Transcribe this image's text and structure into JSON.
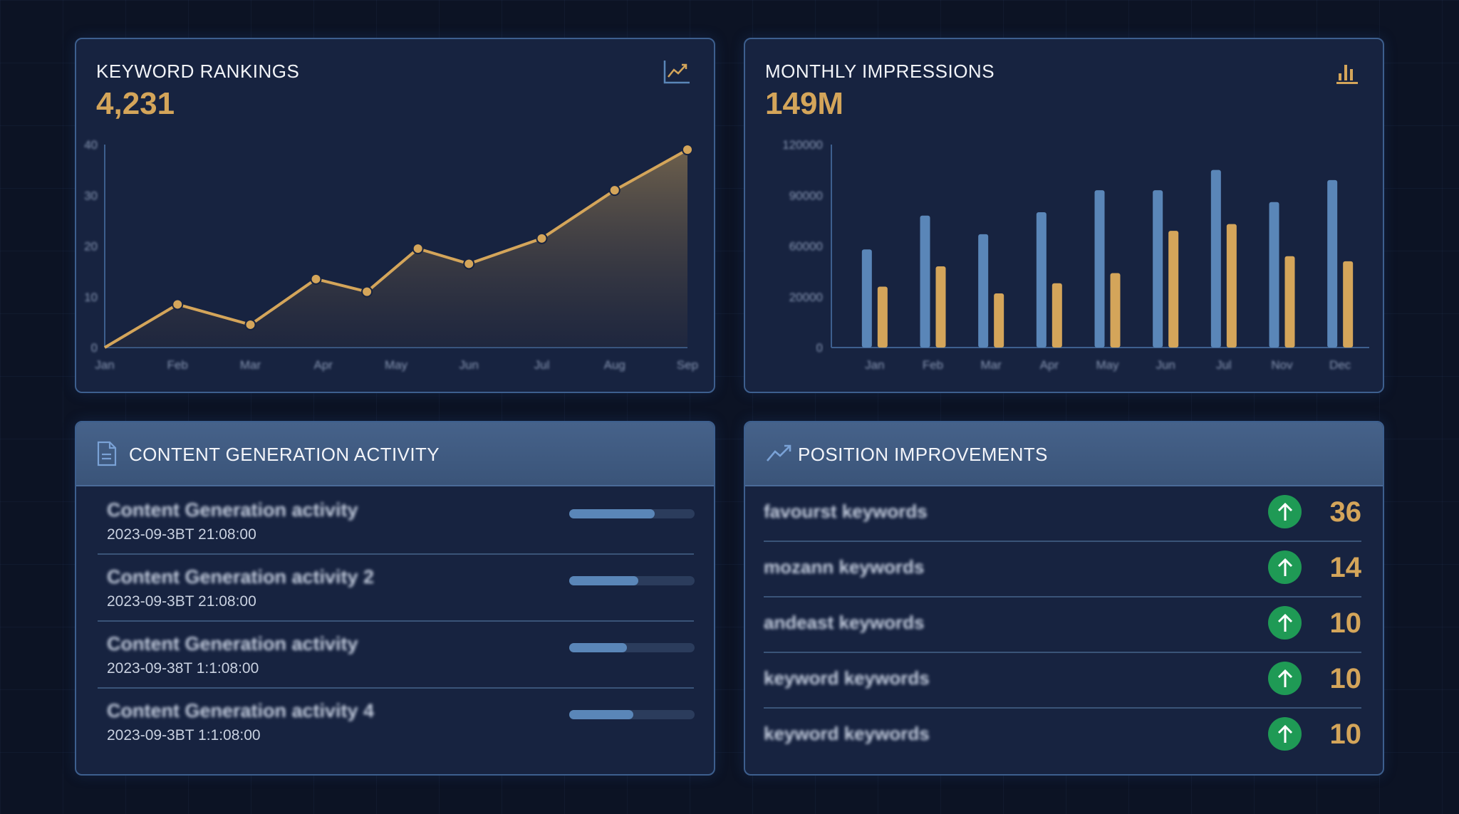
{
  "colors": {
    "gold": "#d4a55a",
    "blue": "#5a86b8",
    "green": "#1f9a55",
    "card": "#172340",
    "border": "#3d5f8e"
  },
  "keyword_rankings": {
    "title": "KEYWORD RANKINGS",
    "value": "4,231",
    "icon": "line-chart-icon"
  },
  "monthly_impressions": {
    "title": "MONTHLY IMPRESSIONS",
    "value": "149M",
    "icon": "bar-chart-icon"
  },
  "chart_data": [
    {
      "type": "area",
      "title": "",
      "xlabel": "",
      "ylabel": "",
      "x_tick_labels": [
        "Jan",
        "Feb",
        "Mar",
        "Apr",
        "May",
        "Jun",
        "Jul",
        "Aug",
        "Sep"
      ],
      "y_tick_labels": [
        "0",
        "10",
        "20",
        "30",
        "40"
      ],
      "ylim": [
        0,
        40
      ],
      "grid": false,
      "points": [
        {
          "x": 0,
          "y": 0
        },
        {
          "x": 1,
          "y": 8.5
        },
        {
          "x": 2,
          "y": 4.5
        },
        {
          "x": 2.9,
          "y": 13.5
        },
        {
          "x": 3.6,
          "y": 11
        },
        {
          "x": 4.3,
          "y": 19.5
        },
        {
          "x": 5,
          "y": 16.5
        },
        {
          "x": 6,
          "y": 21.5
        },
        {
          "x": 7,
          "y": 31
        },
        {
          "x": 8,
          "y": 39
        }
      ]
    },
    {
      "type": "bar",
      "title": "",
      "xlabel": "",
      "ylabel": "",
      "categories": [
        "Jan",
        "Feb",
        "Mar",
        "Apr",
        "May",
        "Jun",
        "Jul",
        "Nov",
        "Dec"
      ],
      "y_tick_labels": [
        "0",
        "20000",
        "60000",
        "90000",
        "120000"
      ],
      "ylim": [
        0,
        120000
      ],
      "grid": false,
      "series": [
        {
          "color": "#5a86b8",
          "values": [
            58000,
            78000,
            67000,
            80000,
            93000,
            93000,
            105000,
            86000,
            99000
          ]
        },
        {
          "color": "#d4a55a",
          "values": [
            36000,
            48000,
            32000,
            38000,
            44000,
            69000,
            73000,
            54000,
            51000
          ]
        }
      ]
    }
  ],
  "content_activity": {
    "title": "CONTENT GENERATION ACTIVITY",
    "icon": "document-icon",
    "items": [
      {
        "title": "Content Generation activity",
        "date": "2023-09-3BT 21:08:00",
        "progress": 0.68
      },
      {
        "title": "Content Generation activity 2",
        "date": "2023-09-3BT 21:08:00",
        "progress": 0.55
      },
      {
        "title": "Content Generation activity",
        "date": "2023-09-38T 1:1:08:00",
        "progress": 0.46
      },
      {
        "title": "Content Generation activity 4",
        "date": "2023-09-3BT 1:1:08:00",
        "progress": 0.51
      }
    ]
  },
  "position_improvements": {
    "title": "POSITION IMPROVEMENTS",
    "icon": "trend-up-icon",
    "items": [
      {
        "keyword": "favourst keywords",
        "change": "36"
      },
      {
        "keyword": "mozann keywords",
        "change": "14"
      },
      {
        "keyword": "andeast keywords",
        "change": "10"
      },
      {
        "keyword": "keyword keywords",
        "change": "10"
      },
      {
        "keyword": "keyword keywords",
        "change": "10"
      }
    ]
  }
}
